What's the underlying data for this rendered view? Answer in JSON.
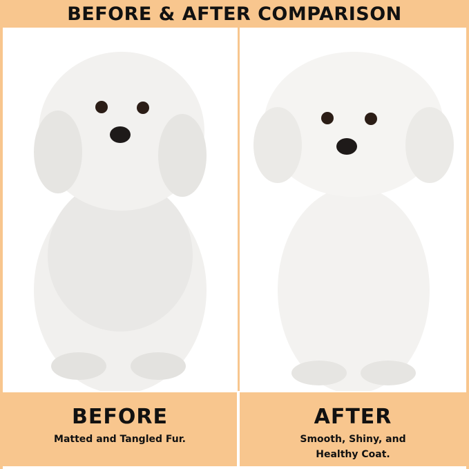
{
  "title": "BEFORE & AFTER COMPARISON",
  "before": {
    "heading": "BEFORE",
    "text": "Matted and Tangled Fur."
  },
  "after": {
    "heading": "AFTER",
    "text_line1": "Smooth, Shiny, and",
    "text_line2": "Healthy Coat."
  },
  "colors": {
    "accent": "#f8c68e"
  }
}
